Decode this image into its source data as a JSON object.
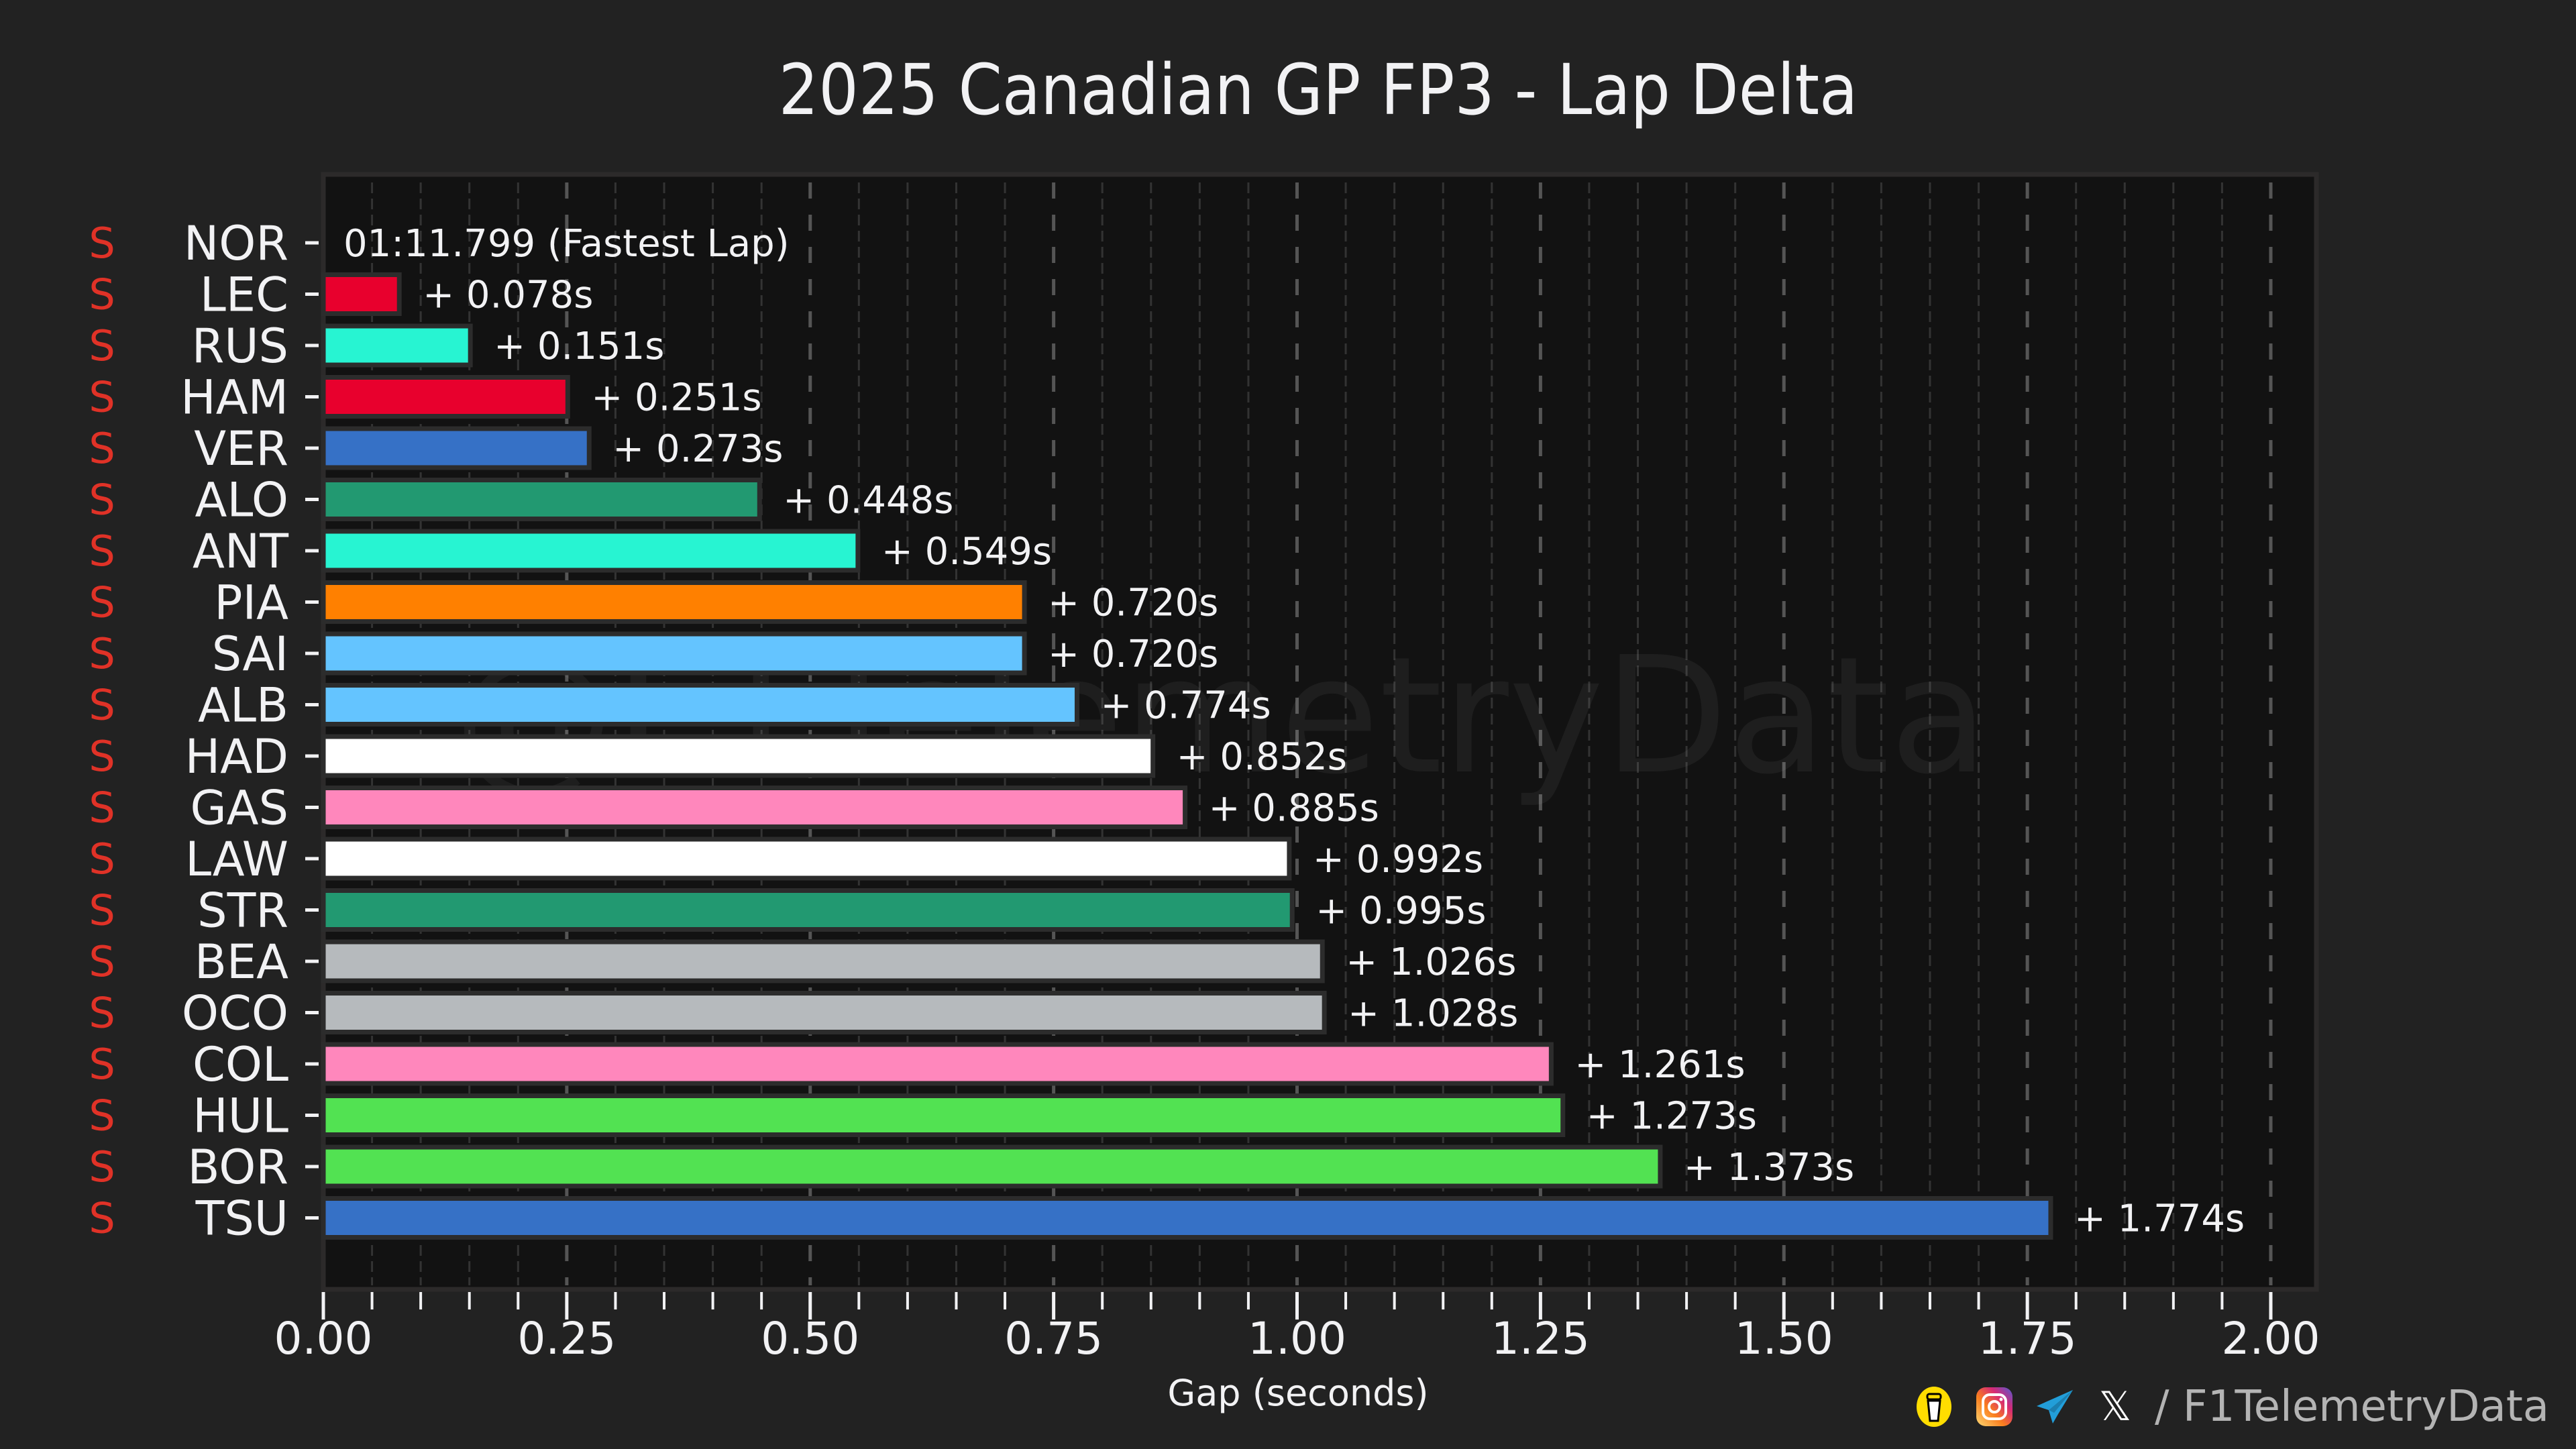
{
  "chart_data": {
    "type": "bar",
    "orientation": "horizontal",
    "title": "2025 Canadian GP FP3 - Lap Delta",
    "xlabel": "Gap (seconds)",
    "ylabel": "",
    "xlim": [
      0,
      2.05
    ],
    "xticks": [
      "0.00",
      "0.25",
      "0.50",
      "0.75",
      "1.00",
      "1.25",
      "1.50",
      "1.75",
      "2.00"
    ],
    "grid": "vertical dashed, major every 0.25, minor every 0.05",
    "legend": "none",
    "fastest_lap_label": "01:11.799 (Fastest Lap)",
    "drivers": [
      {
        "code": "NOR",
        "tyre": "S",
        "gap": 0.0,
        "label": "",
        "color": "#FF8000"
      },
      {
        "code": "LEC",
        "tyre": "S",
        "gap": 0.078,
        "label": "+ 0.078s",
        "color": "#E8002D"
      },
      {
        "code": "RUS",
        "tyre": "S",
        "gap": 0.151,
        "label": "+ 0.151s",
        "color": "#27F4D2"
      },
      {
        "code": "HAM",
        "tyre": "S",
        "gap": 0.251,
        "label": "+ 0.251s",
        "color": "#E8002D"
      },
      {
        "code": "VER",
        "tyre": "S",
        "gap": 0.273,
        "label": "+ 0.273s",
        "color": "#3671C6"
      },
      {
        "code": "ALO",
        "tyre": "S",
        "gap": 0.448,
        "label": "+ 0.448s",
        "color": "#229971"
      },
      {
        "code": "ANT",
        "tyre": "S",
        "gap": 0.549,
        "label": "+ 0.549s",
        "color": "#27F4D2"
      },
      {
        "code": "PIA",
        "tyre": "S",
        "gap": 0.72,
        "label": "+ 0.720s",
        "color": "#FF8000"
      },
      {
        "code": "SAI",
        "tyre": "S",
        "gap": 0.72,
        "label": "+ 0.720s",
        "color": "#64C4FF"
      },
      {
        "code": "ALB",
        "tyre": "S",
        "gap": 0.774,
        "label": "+ 0.774s",
        "color": "#64C4FF"
      },
      {
        "code": "HAD",
        "tyre": "S",
        "gap": 0.852,
        "label": "+ 0.852s",
        "color": "#FFFFFF"
      },
      {
        "code": "GAS",
        "tyre": "S",
        "gap": 0.885,
        "label": "+ 0.885s",
        "color": "#FF87BC"
      },
      {
        "code": "LAW",
        "tyre": "S",
        "gap": 0.992,
        "label": "+ 0.992s",
        "color": "#FFFFFF"
      },
      {
        "code": "STR",
        "tyre": "S",
        "gap": 0.995,
        "label": "+ 0.995s",
        "color": "#229971"
      },
      {
        "code": "BEA",
        "tyre": "S",
        "gap": 1.026,
        "label": "+ 1.026s",
        "color": "#B6BABD"
      },
      {
        "code": "OCO",
        "tyre": "S",
        "gap": 1.028,
        "label": "+ 1.028s",
        "color": "#B6BABD"
      },
      {
        "code": "COL",
        "tyre": "S",
        "gap": 1.261,
        "label": "+ 1.261s",
        "color": "#FF87BC"
      },
      {
        "code": "HUL",
        "tyre": "S",
        "gap": 1.273,
        "label": "+ 1.273s",
        "color": "#52E252"
      },
      {
        "code": "BOR",
        "tyre": "S",
        "gap": 1.373,
        "label": "+ 1.373s",
        "color": "#52E252"
      },
      {
        "code": "TSU",
        "tyre": "S",
        "gap": 1.774,
        "label": "+ 1.774s",
        "color": "#3671C6"
      }
    ],
    "tyre_color": "#E03227"
  },
  "watermark": "@F1TelemetryData",
  "footer": {
    "icons": [
      "buy-me-a-coffee-icon",
      "instagram-icon",
      "telegram-icon",
      "x-icon"
    ],
    "handle": "/ F1TelemetryData",
    "x_glyph": "𝕏"
  },
  "theme": {
    "background": "#222222",
    "plot_background": "#121212",
    "text": "#F2F2F4",
    "grid_major": "#555555",
    "grid_minor": "#333333"
  }
}
